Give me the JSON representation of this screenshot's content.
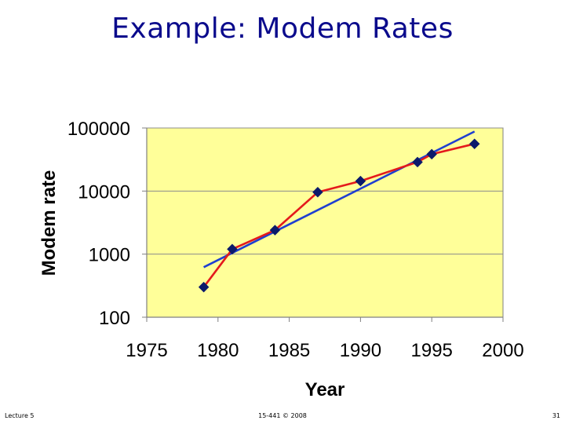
{
  "slide": {
    "title": "Example: Modem Rates",
    "footer_left": "Lecture 5",
    "footer_center": "15-441 © 2008",
    "footer_right": "31"
  },
  "chart_data": {
    "type": "line",
    "xlabel": "Year",
    "ylabel": "Modem rate",
    "xlim": [
      1975,
      2000
    ],
    "ylim": [
      100,
      100000
    ],
    "y_scale": "log",
    "x_ticks": [
      1975,
      1980,
      1985,
      1990,
      1995,
      2000
    ],
    "y_ticks": [
      100,
      1000,
      10000,
      100000
    ],
    "y_tick_labels": [
      "100",
      "1000",
      "10000",
      "100000"
    ],
    "grid": "horizontal",
    "legend": "none",
    "plot_background": "#ffff99",
    "series": [
      {
        "color": "#e41a1c",
        "marker_color": "#0b1a6b",
        "marker": "diamond",
        "x": [
          1979,
          1981,
          1984,
          1987,
          1990,
          1994,
          1995,
          1998
        ],
        "y": [
          300,
          1200,
          2400,
          9600,
          14400,
          28800,
          38400,
          56000
        ]
      },
      {
        "color": "#1f3fd1",
        "marker": "none",
        "x": [
          1979,
          1998
        ],
        "y": [
          620,
          88000
        ]
      }
    ]
  }
}
